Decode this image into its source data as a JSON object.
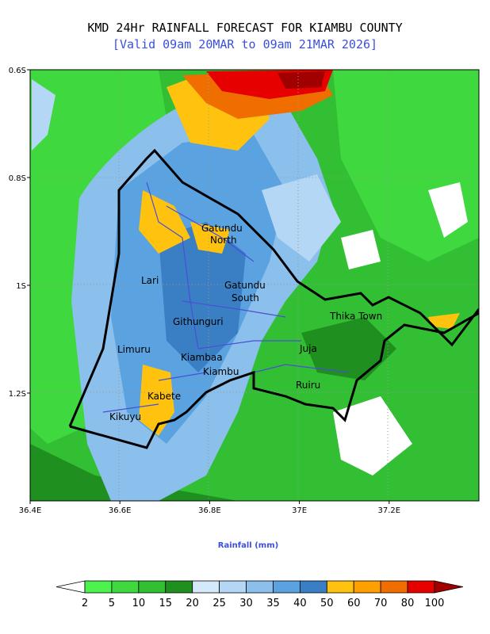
{
  "title": "KMD 24Hr RAINFALL FORECAST FOR KIAMBU COUNTY",
  "subtitle": "[Valid 09am 20MAR to 09am 21MAR 2026]",
  "map": {
    "xlim": [
      36.4,
      37.4
    ],
    "ylim": [
      -0.6,
      -1.4
    ],
    "xticks": [
      {
        "value": 36.4,
        "label": "36.4E"
      },
      {
        "value": 36.6,
        "label": "36.6E"
      },
      {
        "value": 36.8,
        "label": "36.8E"
      },
      {
        "value": 37.0,
        "label": "37E"
      },
      {
        "value": 37.2,
        "label": "37.2E"
      }
    ],
    "yticks": [
      {
        "value": -0.6,
        "label": "0.6S"
      },
      {
        "value": -0.8,
        "label": "0.8S"
      },
      {
        "value": -1.0,
        "label": "1S"
      },
      {
        "value": -1.2,
        "label": "1.2S"
      }
    ]
  },
  "places": [
    [
      "Gatundu",
      "North"
    ],
    [
      "Lari"
    ],
    [
      "Gatundu",
      "South"
    ],
    [
      "Githunguri"
    ],
    [
      "Thika Town"
    ],
    [
      "Limuru"
    ],
    [
      "Juja"
    ],
    [
      "Kiambaa"
    ],
    [
      "Kiambu"
    ],
    [
      "Ruiru"
    ],
    [
      "Kabete"
    ],
    [
      "Kikuyu"
    ]
  ],
  "colorbar": {
    "label": "Rainfall (mm)",
    "ticks": [
      2,
      5,
      10,
      15,
      20,
      25,
      30,
      35,
      40,
      50,
      60,
      70,
      80,
      100
    ],
    "colors": [
      "#ffffff",
      "#4ef24e",
      "#3fd93f",
      "#33bf33",
      "#1f8f1f",
      "#d4eafb",
      "#b4d7f5",
      "#8bbfec",
      "#5aa3e0",
      "#3a7fc4",
      "#ffc20e",
      "#ffa000",
      "#f06e00",
      "#e60000",
      "#a00000"
    ]
  }
}
